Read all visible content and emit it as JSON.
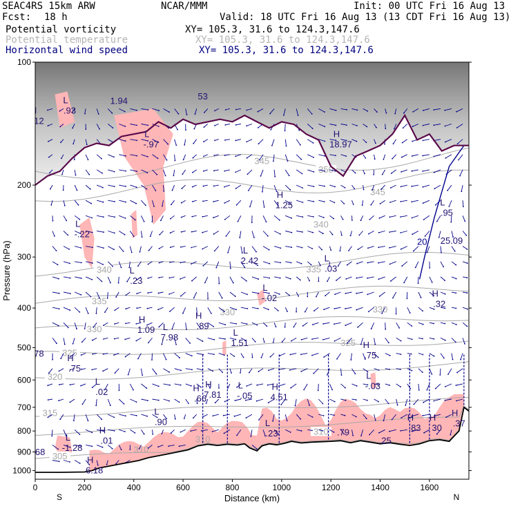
{
  "header": {
    "model": "SEAC4RS 15km ARW",
    "org": "NCAR/MMM",
    "init": "Init: 00 UTC Fri 16 Aug 13",
    "fcst_label": "Fcst:",
    "fcst_value": "18 h",
    "valid": "Valid: 18 UTC Fri 16 Aug 13 (13 CDT Fri 16 Aug 13)",
    "fields": [
      {
        "name": "Potential vorticity",
        "xy": "XY= 105.3, 31.6 to 124.3,147.6",
        "color": "#000000"
      },
      {
        "name": "Potential temperature",
        "xy": "XY= 105.3, 31.6 to 124.3,147.6",
        "color": "#b4b4b4"
      },
      {
        "name": "Horizontal wind speed",
        "xy": "XY= 105.3, 31.6 to 124.3,147.6",
        "color": "#000080"
      }
    ]
  },
  "chart_data": {
    "type": "cross-section",
    "xlabel": "Distance (km)",
    "ylabel": "Pressure (hPa)",
    "xlim": [
      0,
      1760
    ],
    "ylim": [
      1050,
      100
    ],
    "y_scale": "log",
    "x_ticks": [
      0,
      200,
      400,
      600,
      800,
      1000,
      1200,
      1400,
      1600
    ],
    "y_ticks": [
      100,
      200,
      300,
      400,
      500,
      600,
      700,
      800,
      900,
      1000
    ],
    "x_end_labels": {
      "left": "S",
      "right": "N"
    },
    "colors": {
      "pv_fill": "#ffb6b6",
      "theta": "#a8a8a8",
      "wind": "#00008b",
      "tropopause": "#5a0a4a",
      "terrain": "#000000"
    },
    "terrain": {
      "distance_km": [
        0,
        100,
        200,
        230,
        260,
        300,
        340,
        380,
        420,
        460,
        500,
        540,
        580,
        620,
        660,
        700,
        740,
        780,
        820,
        850,
        870,
        900,
        920,
        950,
        980,
        1010,
        1040,
        1080,
        1120,
        1160,
        1200,
        1240,
        1280,
        1320,
        1360,
        1400,
        1440,
        1480,
        1520,
        1560,
        1600,
        1640,
        1680,
        1720,
        1740,
        1760
      ],
      "pressure_hpa": [
        1010,
        1010,
        1008,
        1000,
        985,
        975,
        965,
        955,
        945,
        930,
        920,
        910,
        900,
        890,
        870,
        862,
        868,
        862,
        866,
        860,
        880,
        895,
        870,
        860,
        865,
        858,
        848,
        856,
        852,
        850,
        848,
        845,
        855,
        845,
        852,
        860,
        855,
        862,
        868,
        860,
        845,
        840,
        848,
        800,
        700,
        715
      ]
    },
    "tropopause": {
      "distance_km": [
        0,
        50,
        100,
        150,
        200,
        250,
        300,
        350,
        400,
        450,
        500,
        550,
        600,
        650,
        700,
        750,
        800,
        850,
        900,
        950,
        1000,
        1050,
        1100,
        1150,
        1200,
        1250,
        1300,
        1350,
        1400,
        1450,
        1500,
        1550,
        1600,
        1650,
        1700,
        1760
      ],
      "pressure_hpa": [
        200,
        190,
        185,
        172,
        162,
        158,
        160,
        152,
        150,
        148,
        140,
        145,
        138,
        142,
        140,
        138,
        140,
        135,
        140,
        145,
        140,
        142,
        150,
        155,
        180,
        190,
        170,
        165,
        160,
        150,
        135,
        155,
        150,
        165,
        160,
        160
      ]
    },
    "theta_contours_K": [
      {
        "value": "350",
        "label_distance_km": 1180,
        "label_pressure_hpa": 185
      },
      {
        "value": "345",
        "label_distance_km": 1390,
        "label_pressure_hpa": 210
      },
      {
        "value": "340",
        "label_distance_km": 280,
        "label_pressure_hpa": 325
      },
      {
        "value": "335",
        "label_distance_km": 260,
        "label_pressure_hpa": 388
      },
      {
        "value": "330",
        "label_distance_km": 240,
        "label_pressure_hpa": 455
      },
      {
        "value": "325",
        "label_distance_km": 140,
        "label_pressure_hpa": 520
      },
      {
        "value": "320",
        "label_distance_km": 80,
        "label_pressure_hpa": 595
      },
      {
        "value": "315",
        "label_distance_km": 60,
        "label_pressure_hpa": 730
      },
      {
        "value": "310",
        "label_distance_km": 1160,
        "label_pressure_hpa": 810
      },
      {
        "value": "305",
        "label_distance_km": 100,
        "label_pressure_hpa": 930
      }
    ],
    "theta_extra_labels": [
      {
        "value": "345",
        "distance_km": 920,
        "pressure_hpa": 175
      },
      {
        "value": "340",
        "distance_km": 1160,
        "pressure_hpa": 250
      },
      {
        "value": "335",
        "distance_km": 1130,
        "pressure_hpa": 322
      },
      {
        "value": "330",
        "distance_km": 1400,
        "pressure_hpa": 404
      },
      {
        "value": "325",
        "distance_km": 1270,
        "pressure_hpa": 488
      },
      {
        "value": "330",
        "distance_km": 780,
        "pressure_hpa": 410
      }
    ],
    "extrema_labels": [
      {
        "mark": "H",
        "value": ".12",
        "distance_km": 10,
        "pressure_hpa": 140
      },
      {
        "mark": "L",
        "value": ".93",
        "distance_km": 140,
        "pressure_hpa": 132
      },
      {
        "mark": "",
        "value": "1.94",
        "distance_km": 340,
        "pressure_hpa": 125
      },
      {
        "mark": "",
        "value": "53",
        "distance_km": 680,
        "pressure_hpa": 122
      },
      {
        "mark": "L",
        "value": "-.97",
        "distance_km": 470,
        "pressure_hpa": 160
      },
      {
        "mark": "L",
        "value": "-.22",
        "distance_km": 190,
        "pressure_hpa": 265
      },
      {
        "mark": "L",
        "value": ".23",
        "distance_km": 410,
        "pressure_hpa": 345
      },
      {
        "mark": "H",
        "value": "1.25",
        "distance_km": 1010,
        "pressure_hpa": 225
      },
      {
        "mark": "L",
        "value": "2.42",
        "distance_km": 870,
        "pressure_hpa": 308
      },
      {
        "mark": "H",
        "value": "18.97",
        "distance_km": 1240,
        "pressure_hpa": 160
      },
      {
        "mark": "L",
        "value": ".03",
        "distance_km": 1200,
        "pressure_hpa": 322
      },
      {
        "mark": "L",
        "value": "-.02",
        "distance_km": 950,
        "pressure_hpa": 380
      },
      {
        "mark": "H",
        "value": ".32",
        "distance_km": 1640,
        "pressure_hpa": 393
      },
      {
        "mark": "H",
        "value": "1.09",
        "distance_km": 450,
        "pressure_hpa": 455
      },
      {
        "mark": "L",
        "value": "7.98",
        "distance_km": 545,
        "pressure_hpa": 475
      },
      {
        "mark": "H",
        "value": ".89",
        "distance_km": 680,
        "pressure_hpa": 445
      },
      {
        "mark": "L",
        "value": "1.51",
        "distance_km": 830,
        "pressure_hpa": 490
      },
      {
        "mark": "H",
        "value": ".75",
        "distance_km": 1360,
        "pressure_hpa": 525
      },
      {
        "mark": "H",
        "value": ".75",
        "distance_km": 160,
        "pressure_hpa": 565
      },
      {
        "mark": "",
        "value": "78",
        "distance_km": 15,
        "pressure_hpa": 520
      },
      {
        "mark": "L",
        "value": ".02",
        "distance_km": 270,
        "pressure_hpa": 645
      },
      {
        "mark": "L",
        "value": "-.03",
        "distance_km": 1370,
        "pressure_hpa": 625
      },
      {
        "mark": "H",
        "value": "7.81",
        "distance_km": 720,
        "pressure_hpa": 655
      },
      {
        "mark": "H",
        "value": ".66",
        "distance_km": 670,
        "pressure_hpa": 670
      },
      {
        "mark": "L",
        "value": "-.05",
        "distance_km": 850,
        "pressure_hpa": 660
      },
      {
        "mark": "H",
        "value": "4.51",
        "distance_km": 990,
        "pressure_hpa": 665
      },
      {
        "mark": "L",
        "value": ".90",
        "distance_km": 510,
        "pressure_hpa": 765
      },
      {
        "mark": "L",
        "value": ".23",
        "distance_km": 960,
        "pressure_hpa": 815
      },
      {
        "mark": "H",
        "value": ".01",
        "distance_km": 290,
        "pressure_hpa": 850
      },
      {
        "mark": "L",
        "value": "-1.28",
        "distance_km": 150,
        "pressure_hpa": 885
      },
      {
        "mark": "",
        "value": ".68",
        "distance_km": 15,
        "pressure_hpa": 905
      },
      {
        "mark": "H",
        "value": "6.18",
        "distance_km": 240,
        "pressure_hpa": 1005
      },
      {
        "mark": "",
        "value": ".79",
        "distance_km": 1250,
        "pressure_hpa": 810
      },
      {
        "mark": "",
        "value": ".25",
        "distance_km": 1420,
        "pressure_hpa": 850
      },
      {
        "mark": "H",
        "value": ".83",
        "distance_km": 1540,
        "pressure_hpa": 790
      },
      {
        "mark": "H",
        "value": "30",
        "distance_km": 1630,
        "pressure_hpa": 790
      },
      {
        "mark": "H",
        "value": ".37",
        "distance_km": 1720,
        "pressure_hpa": 770
      },
      {
        "mark": "L",
        "value": ".95",
        "distance_km": 1670,
        "pressure_hpa": 235
      },
      {
        "mark": "",
        "value": "25.09",
        "distance_km": 1690,
        "pressure_hpa": 275
      }
    ],
    "low_theta_labels": [
      {
        "value": "310",
        "distance_km": 430,
        "pressure_hpa": 890
      },
      {
        "value": "310",
        "distance_km": 680,
        "pressure_hpa": 840
      },
      {
        "value": "310",
        "distance_km": 860,
        "pressure_hpa": 905
      },
      {
        "value": "305",
        "distance_km": 1480,
        "pressure_hpa": 880
      }
    ],
    "wind_contour_labels": [
      {
        "value": "20",
        "distance_km": 1570,
        "pressure_hpa": 280
      }
    ]
  }
}
